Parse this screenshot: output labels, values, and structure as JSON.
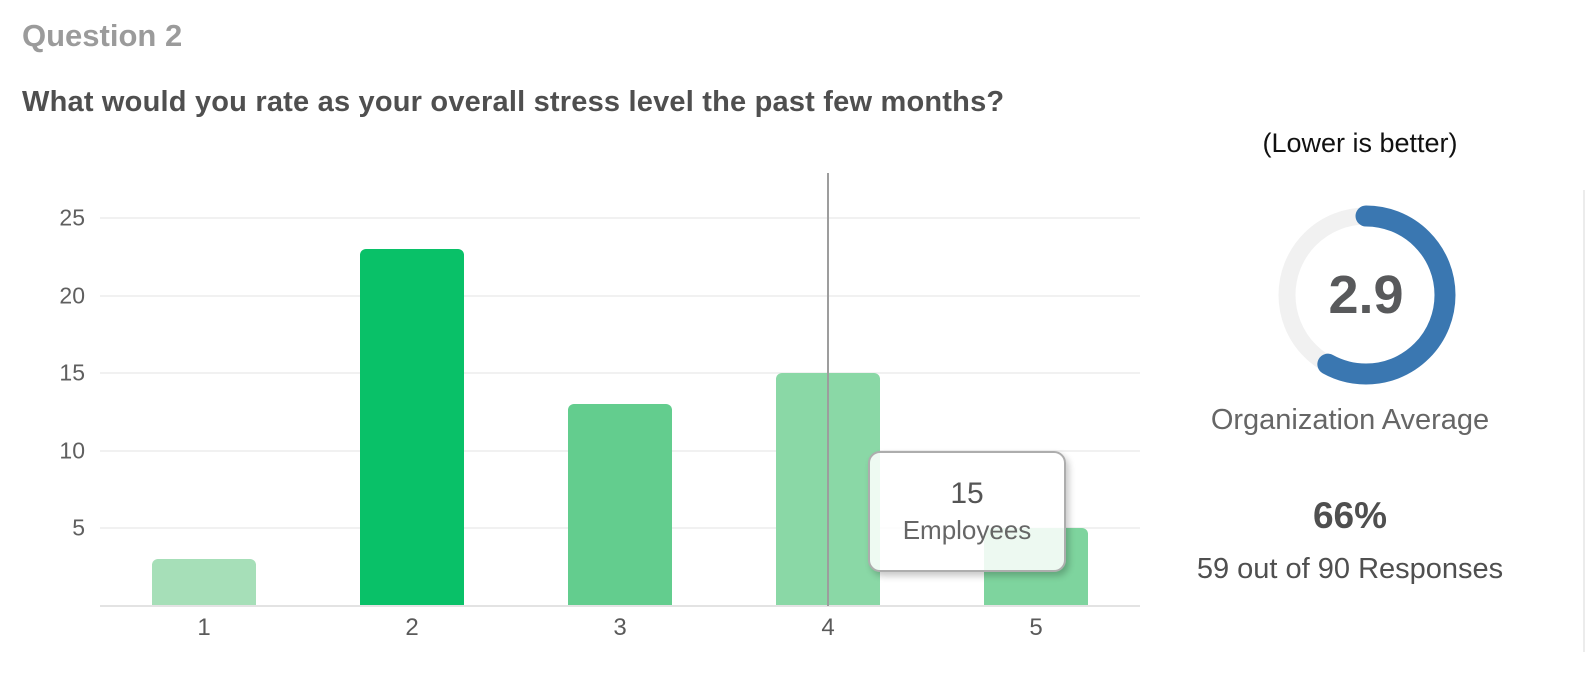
{
  "header": {
    "section_label": "Question 2",
    "question": "What would you rate as your overall stress level the past few months?"
  },
  "chart_data": {
    "type": "bar",
    "categories": [
      "1",
      "2",
      "3",
      "4",
      "5"
    ],
    "values": [
      3,
      23,
      13,
      15,
      5
    ],
    "bar_colors": [
      "#a6dfb8",
      "#09c168",
      "#63cd8e",
      "#8ad8a6",
      "#7ed49e"
    ],
    "title": "",
    "xlabel": "",
    "ylabel": "",
    "ylim": [
      0,
      25
    ],
    "yticks": [
      5,
      10,
      15,
      20,
      25
    ],
    "grid": true,
    "legend": false,
    "hovered_category": "4",
    "tooltip": {
      "value": "15",
      "label": "Employees"
    }
  },
  "gauge": {
    "note": "(Lower is better)",
    "value": "2.9",
    "max": 5,
    "label": "Organization Average",
    "arc_color": "#3a77b1",
    "track_color": "#f1f1f1"
  },
  "stats": {
    "percent": "66%",
    "detail": "59 out of 90 Responses"
  }
}
